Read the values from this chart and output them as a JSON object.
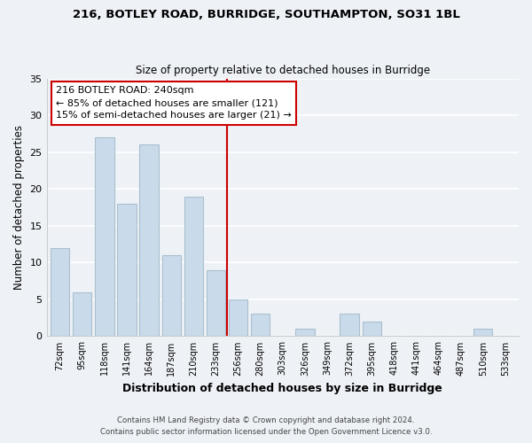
{
  "title1": "216, BOTLEY ROAD, BURRIDGE, SOUTHAMPTON, SO31 1BL",
  "title2": "Size of property relative to detached houses in Burridge",
  "xlabel": "Distribution of detached houses by size in Burridge",
  "ylabel": "Number of detached properties",
  "bar_labels": [
    "72sqm",
    "95sqm",
    "118sqm",
    "141sqm",
    "164sqm",
    "187sqm",
    "210sqm",
    "233sqm",
    "256sqm",
    "280sqm",
    "303sqm",
    "326sqm",
    "349sqm",
    "372sqm",
    "395sqm",
    "418sqm",
    "441sqm",
    "464sqm",
    "487sqm",
    "510sqm",
    "533sqm"
  ],
  "bar_values": [
    12,
    6,
    27,
    18,
    26,
    11,
    19,
    9,
    5,
    3,
    0,
    1,
    0,
    3,
    2,
    0,
    0,
    0,
    0,
    1,
    0
  ],
  "bar_color": "#c9daea",
  "bar_edge_color": "#aabfce",
  "vline_x": 8.0,
  "vline_color": "#cc0000",
  "annotation_text": "216 BOTLEY ROAD: 240sqm\n← 85% of detached houses are smaller (121)\n15% of semi-detached houses are larger (21) →",
  "annotation_box_color": "#ffffff",
  "annotation_box_edge": "#cc0000",
  "ylim": [
    0,
    35
  ],
  "yticks": [
    0,
    5,
    10,
    15,
    20,
    25,
    30,
    35
  ],
  "footer1": "Contains HM Land Registry data © Crown copyright and database right 2024.",
  "footer2": "Contains public sector information licensed under the Open Government Licence v3.0.",
  "bg_color": "#eef2f7"
}
